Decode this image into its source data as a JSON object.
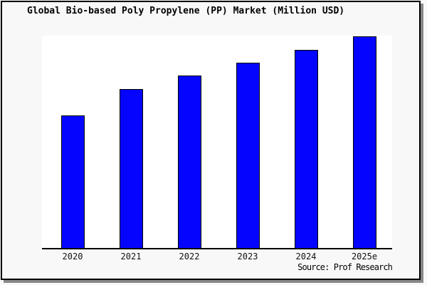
{
  "frame": {
    "background": "#f8f8f8",
    "border_color": "#000000",
    "shadow_color": "#888888"
  },
  "chart": {
    "title": "Global Bio-based Poly Propylene (PP) Market (Million USD)",
    "source": "Source: Prof Research",
    "plot_background": "#ffffff",
    "bar_fill": "#0505ff",
    "bar_border": "#000000",
    "axis_color": "#000000"
  },
  "chart_data": {
    "type": "bar",
    "title": "Global Bio-based Poly Propylene (PP) Market (Million USD)",
    "categories": [
      "2020",
      "2021",
      "2022",
      "2023",
      "2024",
      "2025e"
    ],
    "values": [
      62.6,
      75.0,
      81.4,
      87.5,
      93.7,
      100
    ],
    "units_note": "y-axis has no ticks, labels or gridlines; values estimated as percent of tallest (2025e) bar height",
    "xlabel": "",
    "ylabel": "",
    "ylim": [
      0,
      100
    ],
    "grid": false,
    "legend": false,
    "source": "Source: Prof Research"
  }
}
